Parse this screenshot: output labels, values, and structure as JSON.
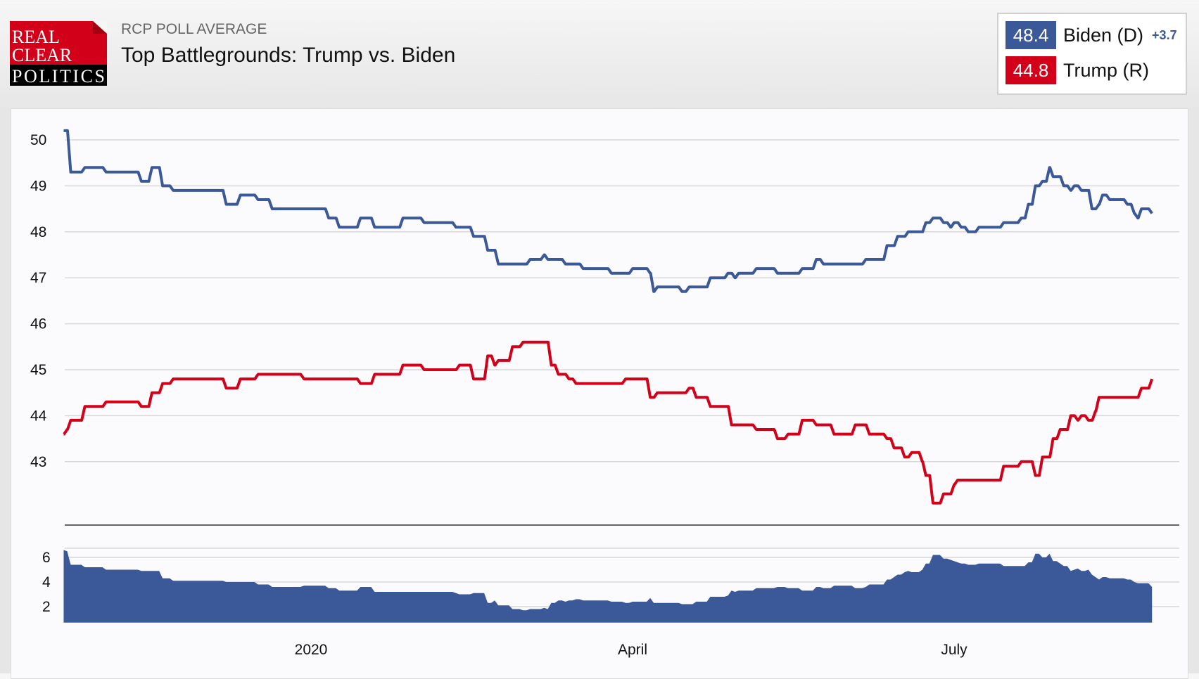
{
  "header": {
    "subtitle": "RCP POLL AVERAGE",
    "title": "Top Battlegrounds: Trump vs. Biden",
    "logo_text": [
      "REAL",
      "CLEAR",
      "POLITICS"
    ]
  },
  "legend": [
    {
      "value": "48.4",
      "name": "Biden (D)",
      "spread": "+3.7",
      "color": "#3b5998"
    },
    {
      "value": "44.8",
      "name": "Trump (R)",
      "color": "#d30019"
    }
  ],
  "chart_data": [
    {
      "type": "line",
      "ylim": [
        42,
        50.2
      ],
      "yticks": [
        50,
        49,
        48,
        47,
        46,
        45,
        44,
        43
      ],
      "grid": true,
      "xticks": [
        {
          "label": "2020",
          "date": "2020-01-01"
        },
        {
          "label": "April",
          "date": "2020-04-01"
        },
        {
          "label": "July",
          "date": "2020-07-01"
        }
      ],
      "series": [
        {
          "name": "Biden (D)",
          "color": "#3b5998",
          "points": [
            [
              "2019-10-23",
              50.2
            ],
            [
              "2019-10-25",
              49.3
            ],
            [
              "2019-10-29",
              49.4
            ],
            [
              "2019-11-04",
              49.3
            ],
            [
              "2019-11-14",
              49.1
            ],
            [
              "2019-11-17",
              49.4
            ],
            [
              "2019-11-20",
              49.0
            ],
            [
              "2019-11-23",
              48.9
            ],
            [
              "2019-12-08",
              48.6
            ],
            [
              "2019-12-12",
              48.8
            ],
            [
              "2019-12-17",
              48.7
            ],
            [
              "2019-12-21",
              48.5
            ],
            [
              "2020-01-06",
              48.3
            ],
            [
              "2020-01-09",
              48.1
            ],
            [
              "2020-01-15",
              48.3
            ],
            [
              "2020-01-19",
              48.1
            ],
            [
              "2020-01-27",
              48.3
            ],
            [
              "2020-02-02",
              48.2
            ],
            [
              "2020-02-11",
              48.1
            ],
            [
              "2020-02-16",
              47.9
            ],
            [
              "2020-02-20",
              47.6
            ],
            [
              "2020-02-23",
              47.3
            ],
            [
              "2020-03-03",
              47.4
            ],
            [
              "2020-03-07",
              47.5
            ],
            [
              "2020-03-08",
              47.4
            ],
            [
              "2020-03-13",
              47.3
            ],
            [
              "2020-03-18",
              47.2
            ],
            [
              "2020-03-26",
              47.1
            ],
            [
              "2020-04-01",
              47.2
            ],
            [
              "2020-04-06",
              47.1
            ],
            [
              "2020-04-07",
              46.7
            ],
            [
              "2020-04-08",
              46.8
            ],
            [
              "2020-04-15",
              46.7
            ],
            [
              "2020-04-17",
              46.8
            ],
            [
              "2020-04-23",
              47.0
            ],
            [
              "2020-04-28",
              47.1
            ],
            [
              "2020-04-30",
              47.0
            ],
            [
              "2020-05-01",
              47.1
            ],
            [
              "2020-05-06",
              47.2
            ],
            [
              "2020-05-12",
              47.1
            ],
            [
              "2020-05-19",
              47.2
            ],
            [
              "2020-05-23",
              47.4
            ],
            [
              "2020-05-25",
              47.3
            ],
            [
              "2020-06-06",
              47.4
            ],
            [
              "2020-06-12",
              47.7
            ],
            [
              "2020-06-15",
              47.9
            ],
            [
              "2020-06-18",
              48.0
            ],
            [
              "2020-06-23",
              48.2
            ],
            [
              "2020-06-25",
              48.3
            ],
            [
              "2020-06-28",
              48.2
            ],
            [
              "2020-06-30",
              48.1
            ],
            [
              "2020-07-01",
              48.2
            ],
            [
              "2020-07-03",
              48.1
            ],
            [
              "2020-07-05",
              48.0
            ],
            [
              "2020-07-08",
              48.1
            ],
            [
              "2020-07-15",
              48.2
            ],
            [
              "2020-07-20",
              48.3
            ],
            [
              "2020-07-22",
              48.6
            ],
            [
              "2020-07-24",
              49.0
            ],
            [
              "2020-07-26",
              49.1
            ],
            [
              "2020-07-28",
              49.4
            ],
            [
              "2020-07-29",
              49.2
            ],
            [
              "2020-08-01",
              49.0
            ],
            [
              "2020-08-03",
              48.9
            ],
            [
              "2020-08-04",
              49.0
            ],
            [
              "2020-08-06",
              48.9
            ],
            [
              "2020-08-09",
              48.5
            ],
            [
              "2020-08-11",
              48.6
            ],
            [
              "2020-08-12",
              48.8
            ],
            [
              "2020-08-14",
              48.7
            ],
            [
              "2020-08-19",
              48.6
            ],
            [
              "2020-08-21",
              48.4
            ],
            [
              "2020-08-22",
              48.3
            ],
            [
              "2020-08-23",
              48.5
            ],
            [
              "2020-08-25",
              48.5
            ],
            [
              "2020-08-26",
              48.4
            ]
          ]
        },
        {
          "name": "Trump (R)",
          "color": "#d30019",
          "points": [
            [
              "2019-10-23",
              43.6
            ],
            [
              "2019-10-24",
              43.7
            ],
            [
              "2019-10-25",
              43.9
            ],
            [
              "2019-10-29",
              44.2
            ],
            [
              "2019-11-04",
              44.3
            ],
            [
              "2019-11-14",
              44.2
            ],
            [
              "2019-11-17",
              44.5
            ],
            [
              "2019-11-20",
              44.7
            ],
            [
              "2019-11-23",
              44.8
            ],
            [
              "2019-12-08",
              44.6
            ],
            [
              "2019-12-12",
              44.8
            ],
            [
              "2019-12-17",
              44.9
            ],
            [
              "2019-12-30",
              44.8
            ],
            [
              "2020-01-15",
              44.7
            ],
            [
              "2020-01-19",
              44.9
            ],
            [
              "2020-01-27",
              45.1
            ],
            [
              "2020-02-02",
              45.0
            ],
            [
              "2020-02-12",
              45.1
            ],
            [
              "2020-02-16",
              44.8
            ],
            [
              "2020-02-20",
              45.3
            ],
            [
              "2020-02-22",
              45.1
            ],
            [
              "2020-02-23",
              45.2
            ],
            [
              "2020-02-27",
              45.5
            ],
            [
              "2020-03-01",
              45.6
            ],
            [
              "2020-03-07",
              45.6
            ],
            [
              "2020-03-09",
              45.1
            ],
            [
              "2020-03-11",
              44.9
            ],
            [
              "2020-03-14",
              44.8
            ],
            [
              "2020-03-16",
              44.7
            ],
            [
              "2020-03-30",
              44.8
            ],
            [
              "2020-04-05",
              44.8
            ],
            [
              "2020-04-06",
              44.4
            ],
            [
              "2020-04-08",
              44.5
            ],
            [
              "2020-04-17",
              44.6
            ],
            [
              "2020-04-19",
              44.4
            ],
            [
              "2020-04-23",
              44.2
            ],
            [
              "2020-04-27",
              44.2
            ],
            [
              "2020-04-29",
              43.8
            ],
            [
              "2020-05-06",
              43.7
            ],
            [
              "2020-05-12",
              43.5
            ],
            [
              "2020-05-15",
              43.6
            ],
            [
              "2020-05-19",
              43.9
            ],
            [
              "2020-05-23",
              43.8
            ],
            [
              "2020-05-28",
              43.6
            ],
            [
              "2020-06-03",
              43.8
            ],
            [
              "2020-06-07",
              43.6
            ],
            [
              "2020-06-12",
              43.5
            ],
            [
              "2020-06-14",
              43.3
            ],
            [
              "2020-06-17",
              43.1
            ],
            [
              "2020-06-19",
              43.2
            ],
            [
              "2020-06-22",
              43.0
            ],
            [
              "2020-06-23",
              42.7
            ],
            [
              "2020-06-25",
              42.1
            ],
            [
              "2020-06-28",
              42.3
            ],
            [
              "2020-07-01",
              42.5
            ],
            [
              "2020-07-02",
              42.6
            ],
            [
              "2020-07-15",
              42.9
            ],
            [
              "2020-07-20",
              43.0
            ],
            [
              "2020-07-24",
              42.7
            ],
            [
              "2020-07-26",
              43.1
            ],
            [
              "2020-07-29",
              43.5
            ],
            [
              "2020-07-31",
              43.7
            ],
            [
              "2020-08-03",
              44.0
            ],
            [
              "2020-08-05",
              43.9
            ],
            [
              "2020-08-06",
              44.0
            ],
            [
              "2020-08-08",
              43.9
            ],
            [
              "2020-08-10",
              44.1
            ],
            [
              "2020-08-11",
              44.4
            ],
            [
              "2020-08-22",
              44.4
            ],
            [
              "2020-08-23",
              44.6
            ],
            [
              "2020-08-25",
              44.6
            ],
            [
              "2020-08-26",
              44.8
            ]
          ]
        }
      ]
    },
    {
      "type": "area",
      "ylim": [
        0.7,
        6.75
      ],
      "yticks": [
        6,
        4,
        2
      ],
      "grid": true,
      "color": "#3b5998",
      "values_from": "Biden (D) minus Trump (R) spread"
    }
  ]
}
